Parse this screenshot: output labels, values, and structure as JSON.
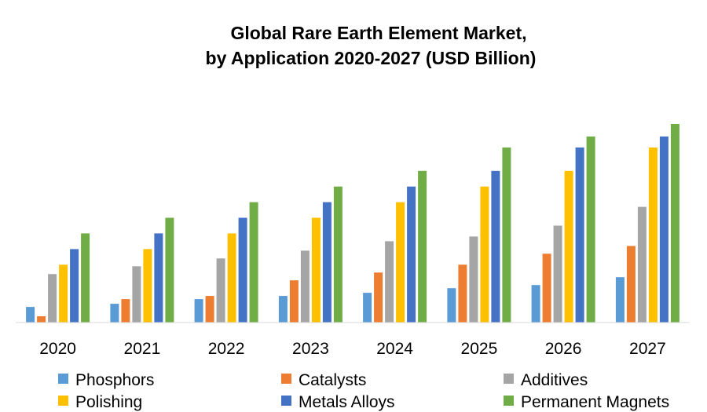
{
  "chart_data": {
    "type": "bar",
    "title_lines": [
      "Global Rare Earth Element Market,",
      "by Application 2020-2027 (USD Billion)"
    ],
    "categories": [
      "2020",
      "2021",
      "2022",
      "2023",
      "2024",
      "2025",
      "2026",
      "2027"
    ],
    "series": [
      {
        "name": "Phosphors",
        "color": "#5B9BD5",
        "values": [
          1.0,
          1.2,
          1.5,
          1.7,
          1.9,
          2.2,
          2.4,
          2.9
        ]
      },
      {
        "name": "Catalysts",
        "color": "#ED7D31",
        "values": [
          0.4,
          1.5,
          1.7,
          2.7,
          3.2,
          3.7,
          4.4,
          4.9
        ]
      },
      {
        "name": "Additives",
        "color": "#A5A5A5",
        "values": [
          3.1,
          3.6,
          4.1,
          4.6,
          5.2,
          5.5,
          6.2,
          7.4
        ]
      },
      {
        "name": "Polishing",
        "color": "#FFC000",
        "values": [
          3.7,
          4.7,
          5.7,
          6.7,
          7.7,
          8.7,
          9.7,
          11.2
        ]
      },
      {
        "name": "Metals Alloys",
        "color": "#4472C4",
        "values": [
          4.7,
          5.7,
          6.7,
          7.7,
          8.7,
          9.7,
          11.2,
          11.9
        ]
      },
      {
        "name": "Permanent Magnets",
        "color": "#70AD47",
        "values": [
          5.7,
          6.7,
          7.7,
          8.7,
          9.7,
          11.2,
          11.9,
          12.7
        ]
      }
    ],
    "ylim": [
      0,
      13
    ],
    "grid": false,
    "legend_position": "bottom"
  }
}
